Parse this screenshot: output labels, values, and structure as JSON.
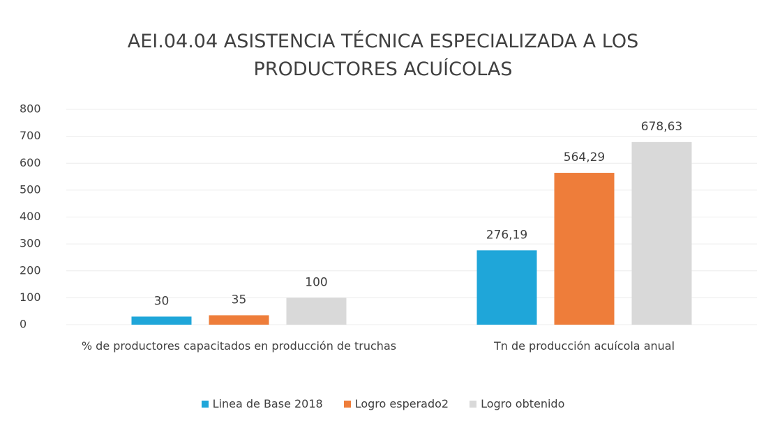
{
  "chart_data": {
    "type": "bar",
    "title": "AEI.04.04 ASISTENCIA TÉCNICA ESPECIALIZADA A LOS PRODUCTORES ACUÍCOLAS",
    "categories": [
      "% de productores capacitados en producción de truchas",
      "Tn de producción acuícola anual"
    ],
    "series": [
      {
        "name": "Linea de Base 2018",
        "color": "#1fa6d9",
        "values": [
          30,
          276.19
        ],
        "value_labels": [
          "30",
          "276,19"
        ]
      },
      {
        "name": "Logro esperado2",
        "color": "#ee7d3a",
        "values": [
          35,
          564.29
        ],
        "value_labels": [
          "35",
          "564,29"
        ]
      },
      {
        "name": "Logro obtenido",
        "color": "#d9d9d9",
        "values": [
          100,
          678.63
        ],
        "value_labels": [
          "100",
          "678,63"
        ]
      }
    ],
    "ylim": [
      0,
      800
    ],
    "yticks": [
      0,
      100,
      200,
      300,
      400,
      500,
      600,
      700,
      800
    ],
    "grid": true,
    "legend": "bottom"
  }
}
